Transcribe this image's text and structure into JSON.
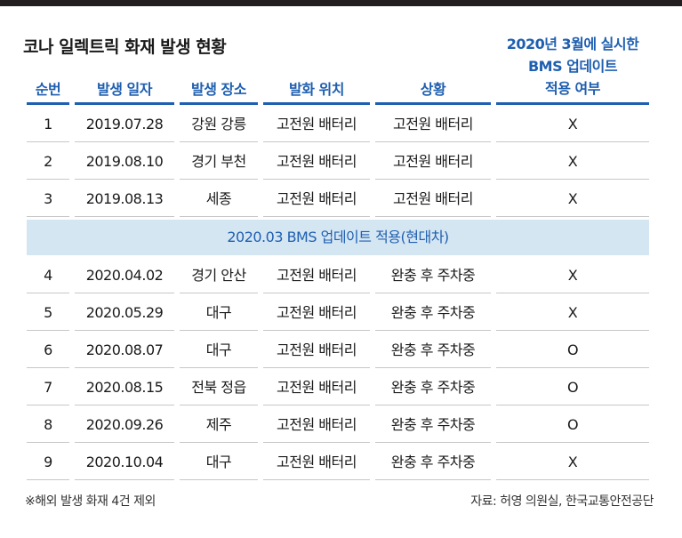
{
  "title": "코나 일렉트릭 화재 발생 현황",
  "headers": [
    "순번",
    "발생 일자",
    "발생 장소",
    "발화 위치",
    "상황",
    "2020년 3월에 실시한 BMS 업데이트 적용 여부"
  ],
  "header_special_lines": [
    "2020년 3월에 실시한",
    "BMS 업데이트",
    "적용 여부"
  ],
  "rows_before": [
    {
      "no": "1",
      "date": "2019.07.28",
      "place": "강원 강릉",
      "origin": "고전원 배터리",
      "status": "고전원 배터리",
      "applied": "X"
    },
    {
      "no": "2",
      "date": "2019.08.10",
      "place": "경기 부천",
      "origin": "고전원 배터리",
      "status": "고전원 배터리",
      "applied": "X"
    },
    {
      "no": "3",
      "date": "2019.08.13",
      "place": "세종",
      "origin": "고전원 배터리",
      "status": "고전원 배터리",
      "applied": "X"
    }
  ],
  "band_label": "2020.03 BMS 업데이트 적용(현대차)",
  "rows_after": [
    {
      "no": "4",
      "date": "2020.04.02",
      "place": "경기 안산",
      "origin": "고전원 배터리",
      "status": "완충 후 주차중",
      "applied": "X"
    },
    {
      "no": "5",
      "date": "2020.05.29",
      "place": "대구",
      "origin": "고전원 배터리",
      "status": "완충 후 주차중",
      "applied": "X"
    },
    {
      "no": "6",
      "date": "2020.08.07",
      "place": "대구",
      "origin": "고전원 배터리",
      "status": "완충 후 주차중",
      "applied": "O"
    },
    {
      "no": "7",
      "date": "2020.08.15",
      "place": "전북 정읍",
      "origin": "고전원 배터리",
      "status": "완충 후 주차중",
      "applied": "O"
    },
    {
      "no": "8",
      "date": "2020.09.26",
      "place": "제주",
      "origin": "고전원 배터리",
      "status": "완충 후 주차중",
      "applied": "O"
    },
    {
      "no": "9",
      "date": "2020.10.04",
      "place": "대구",
      "origin": "고전원 배터리",
      "status": "완충 후 주차중",
      "applied": "X"
    }
  ],
  "footnote": "※해외 발생 화재 4건 제외",
  "source": "자료: 허영 의원실, 한국교통안전공단",
  "colors": {
    "accent": "#1f5fb0",
    "band": "#d5e6f3",
    "text": "#1a1a1a",
    "divider": "#c7c7c7",
    "topbar": "#231f20"
  }
}
